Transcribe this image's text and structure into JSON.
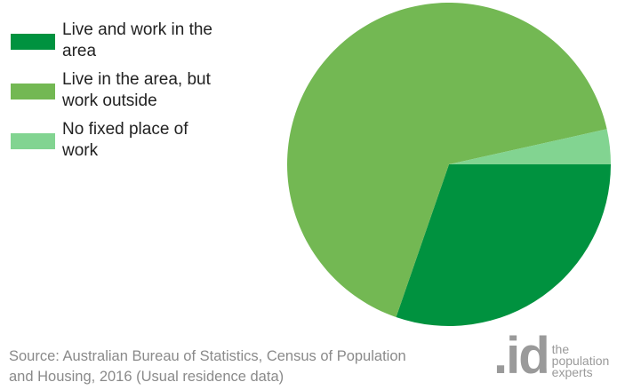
{
  "chart_data": {
    "type": "pie",
    "categories": [
      "Live and work in the area",
      "Live in the area, but work outside",
      "No fixed place of work"
    ],
    "values": [
      30.3,
      66.2,
      3.5
    ],
    "colors": [
      "#00923f",
      "#73b853",
      "#82d491"
    ],
    "legend": "top-left",
    "source": "Source: Australian Bureau of Statistics, Census of Population and Housing, 2016 (Usual residence data)"
  },
  "logo": {
    "mark": ".id",
    "tagline": "the population experts"
  }
}
